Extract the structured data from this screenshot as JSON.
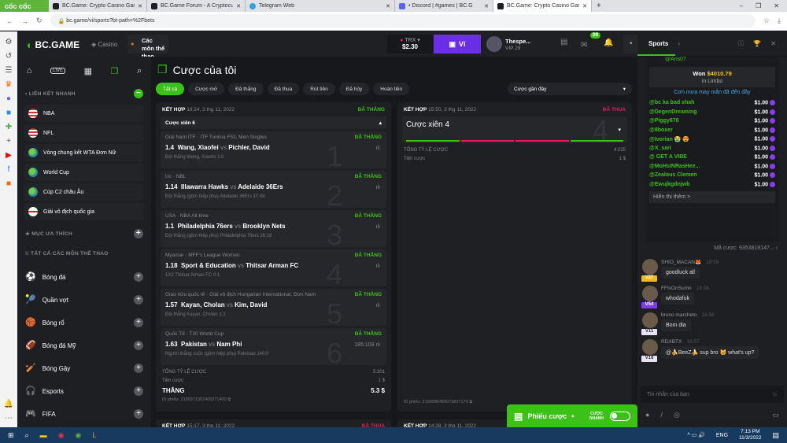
{
  "browser": {
    "brand": "cốc cốc",
    "tabs": [
      {
        "title": "BC.Game: Crypto Casino Gam"
      },
      {
        "title": "BC.Game Forum - A Cryptocu"
      },
      {
        "title": "Telegram Web"
      },
      {
        "title": "• Discord | #games | BC.G"
      },
      {
        "title": "BC.Game: Crypto Casino Gam",
        "active": true
      }
    ],
    "url": "bc.game/vi/sports?bt-path=%2Fbets"
  },
  "header": {
    "logo": "BC.GAME",
    "casino": "Casino",
    "sports": "Các môn thể thao",
    "currency": "TRX",
    "balance": "$2.30",
    "wallet": "Ví",
    "username": "Thespe...",
    "vip": "VIP 29",
    "mail_badge": "99"
  },
  "nav": {
    "quick_links_title": "LIÊN KẾT NHANH",
    "quick_links": [
      {
        "label": "NBA",
        "flag": "us"
      },
      {
        "label": "NFL",
        "flag": "us"
      },
      {
        "label": "Vòng chung kết WTA Đơn Nữ",
        "flag": "world"
      },
      {
        "label": "World Cup",
        "flag": "world"
      },
      {
        "label": "Cúp C2 châu Âu",
        "flag": "world"
      },
      {
        "label": "Giải vô địch quốc gia",
        "flag": "england"
      }
    ],
    "favorites_title": "MỤC ƯA THÍCH",
    "all_sports_title": "TẤT CẢ CÁC MÔN THỂ THAO",
    "sports": [
      {
        "label": "Bóng đá",
        "icon": "⚽"
      },
      {
        "label": "Quần vợt",
        "icon": "🎾"
      },
      {
        "label": "Bóng rổ",
        "icon": "🏀"
      },
      {
        "label": "Bóng đá Mỹ",
        "icon": "🏈"
      },
      {
        "label": "Bóng Gậy",
        "icon": "🏏"
      },
      {
        "label": "Esports",
        "icon": "🎧"
      },
      {
        "label": "FIFA",
        "icon": "🎮"
      }
    ]
  },
  "main": {
    "title": "Cược của tôi",
    "filters": [
      "Tất cả",
      "Cược mở",
      "Đã thắng",
      "Đã thua",
      "Rút tiền",
      "Đã hủy",
      "Hoàn tiền"
    ],
    "sort": "Cược gần đây",
    "bet1": {
      "type": "KẾT HỢP",
      "time": "16:24, 3 thg 11, 2022",
      "status": "ĐÃ THẮNG",
      "parlay": "Cược xiên 6",
      "legs": [
        {
          "league": "Giải Nam ITF · ITF Tunisia F53, Men Singles",
          "odds": "1.4",
          "home": "Wang, Xiaofei",
          "away": "Pichler, David",
          "pick": "Đội thắng Wang, Xiaofei  1:0",
          "status": "ĐÃ THẮNG",
          "n": "1"
        },
        {
          "league": "Úc · NBL",
          "odds": "1.14",
          "home": "Illawarra Hawks",
          "away": "Adelaide 36Ers",
          "pick": "Đội thắng (gồm hiệp phụ) Adelaide 36Ers  37:49",
          "status": "ĐÃ THẮNG",
          "n": "2"
        },
        {
          "league": "USA · NBA All-time",
          "odds": "1.1",
          "home": "Philadelphia 76ers",
          "away": "Brooklyn Nets",
          "pick": "Đội thắng (gồm hiệp phụ) Philadelphia 76ers  26:18",
          "status": "ĐÃ THẮNG",
          "n": "3"
        },
        {
          "league": "Myamar · MFF's League Women",
          "odds": "1.18",
          "home": "Sport & Education",
          "away": "Thitsar Arman FC",
          "pick": "1X2 Thitsar Arman FC  0:1",
          "status": "ĐÃ THẮNG",
          "n": "4"
        },
        {
          "league": "Giao hữu quốc tế · Giải vô địch Hungarian International, Đơn Nam",
          "odds": "1.57",
          "home": "Kayan, Cholan",
          "away": "Kim, David",
          "pick": "Đội thắng Kayan, Cholan  1:1",
          "status": "ĐÃ THẮNG",
          "n": "5"
        },
        {
          "league": "Quốc Tế · T20 World Cup",
          "odds": "1.63",
          "home": "Pakistan",
          "away": "Nam Phi",
          "pick": "Người thắng cuộc (gồm hiệp phụ) Pakistan  140:0",
          "status": "ĐÃ THẮNG",
          "score": "185:108",
          "n": "6"
        }
      ],
      "total_odds_label": "TỔNG TỶ LỆ CƯỢC",
      "total_odds": "5.301",
      "stake_label": "Tiền cược",
      "stake": "1 $",
      "win_label": "THẮNG",
      "win": "5.3 $",
      "ticket_label": "ID phiếu:",
      "ticket": "2199371352406371400"
    },
    "bet2": {
      "type": "KẾT HỢP",
      "time": "15:50, 3 thg 11, 2022",
      "status": "ĐÃ THUA",
      "parlay": "Cược xiên 4",
      "n": "4",
      "legs_result": [
        "won",
        "lost",
        "lost",
        "won"
      ],
      "total_odds_label": "TỔNG TỶ LỆ CƯỢC",
      "total_odds": "4.025",
      "stake_label": "Tiền cược",
      "stake": "1 $",
      "ticket_label": "ID phiếu:",
      "ticket": "2199086455073837170"
    },
    "bet3": {
      "type": "KẾT HỢP",
      "time": "15:17, 3 thg 11, 2022",
      "status": "ĐÃ THUA"
    },
    "bet4": {
      "type": "KẾT HỢP",
      "time": "14:28, 3 thg 11, 2022"
    }
  },
  "betslip": {
    "label": "Phiếu cược",
    "quick": "CƯỢC NHANH"
  },
  "chat": {
    "tab": "Sports",
    "rain_user": "@Aris07",
    "won_label": "Won",
    "won_amount": "$4010.79",
    "game": "in Limbo",
    "rain_title": "Cơn mưa may mắn đã đến đây",
    "rain": [
      {
        "u": "@bc ka bad shah",
        "a": "$1.00"
      },
      {
        "u": "@DegenDreaming",
        "a": "$1.00"
      },
      {
        "u": "@Piggy678",
        "a": "$1.00"
      },
      {
        "u": "@8boxer",
        "a": "$1.00"
      },
      {
        "u": "@Ivorian 😭 😍",
        "a": "$1.00"
      },
      {
        "u": "@X_sari",
        "a": "$1.00"
      },
      {
        "u": "@ GET A VIBE",
        "a": "$1.00"
      },
      {
        "u": "@MoHsINRasHee...",
        "a": "$1.00"
      },
      {
        "u": "@Zealous Clemen",
        "a": "$1.00"
      },
      {
        "u": "@Ewujkgdnjwb",
        "a": "$1.00"
      }
    ],
    "show_more": "Hiển thị thêm >",
    "bet_id": "Mã cược: 9353818147...",
    "messages": [
      {
        "user": "SHIO_MACAN🦊",
        "time": "18:56",
        "text": "goodluck all",
        "vip": "V27",
        "vipc": "#f5b81c"
      },
      {
        "user": "FFIsOnSumn",
        "time": "18:56",
        "text": "whodafuk",
        "vip": "V54",
        "vipc": "#7d3cf0"
      },
      {
        "user": "bruno marcheto",
        "time": "18:56",
        "text": "Bom dia",
        "vip": "V11",
        "vipc": "#e8e0f5"
      },
      {
        "user": "RDXBTX",
        "time": "18:57",
        "text": "@🍌BeeZ🍌 sup bro 🐱 what's up?",
        "vip": "V18",
        "vipc": "#e8e0f5"
      }
    ],
    "input_placeholder": "Tin nhắn của bạn"
  },
  "taskbar": {
    "lang": "ENG",
    "time": "7:13 PM",
    "date": "11/3/2022"
  },
  "colors": {
    "accent": "#3bc117",
    "lost": "#e01d5f",
    "wallet": "#6a2ee8"
  }
}
